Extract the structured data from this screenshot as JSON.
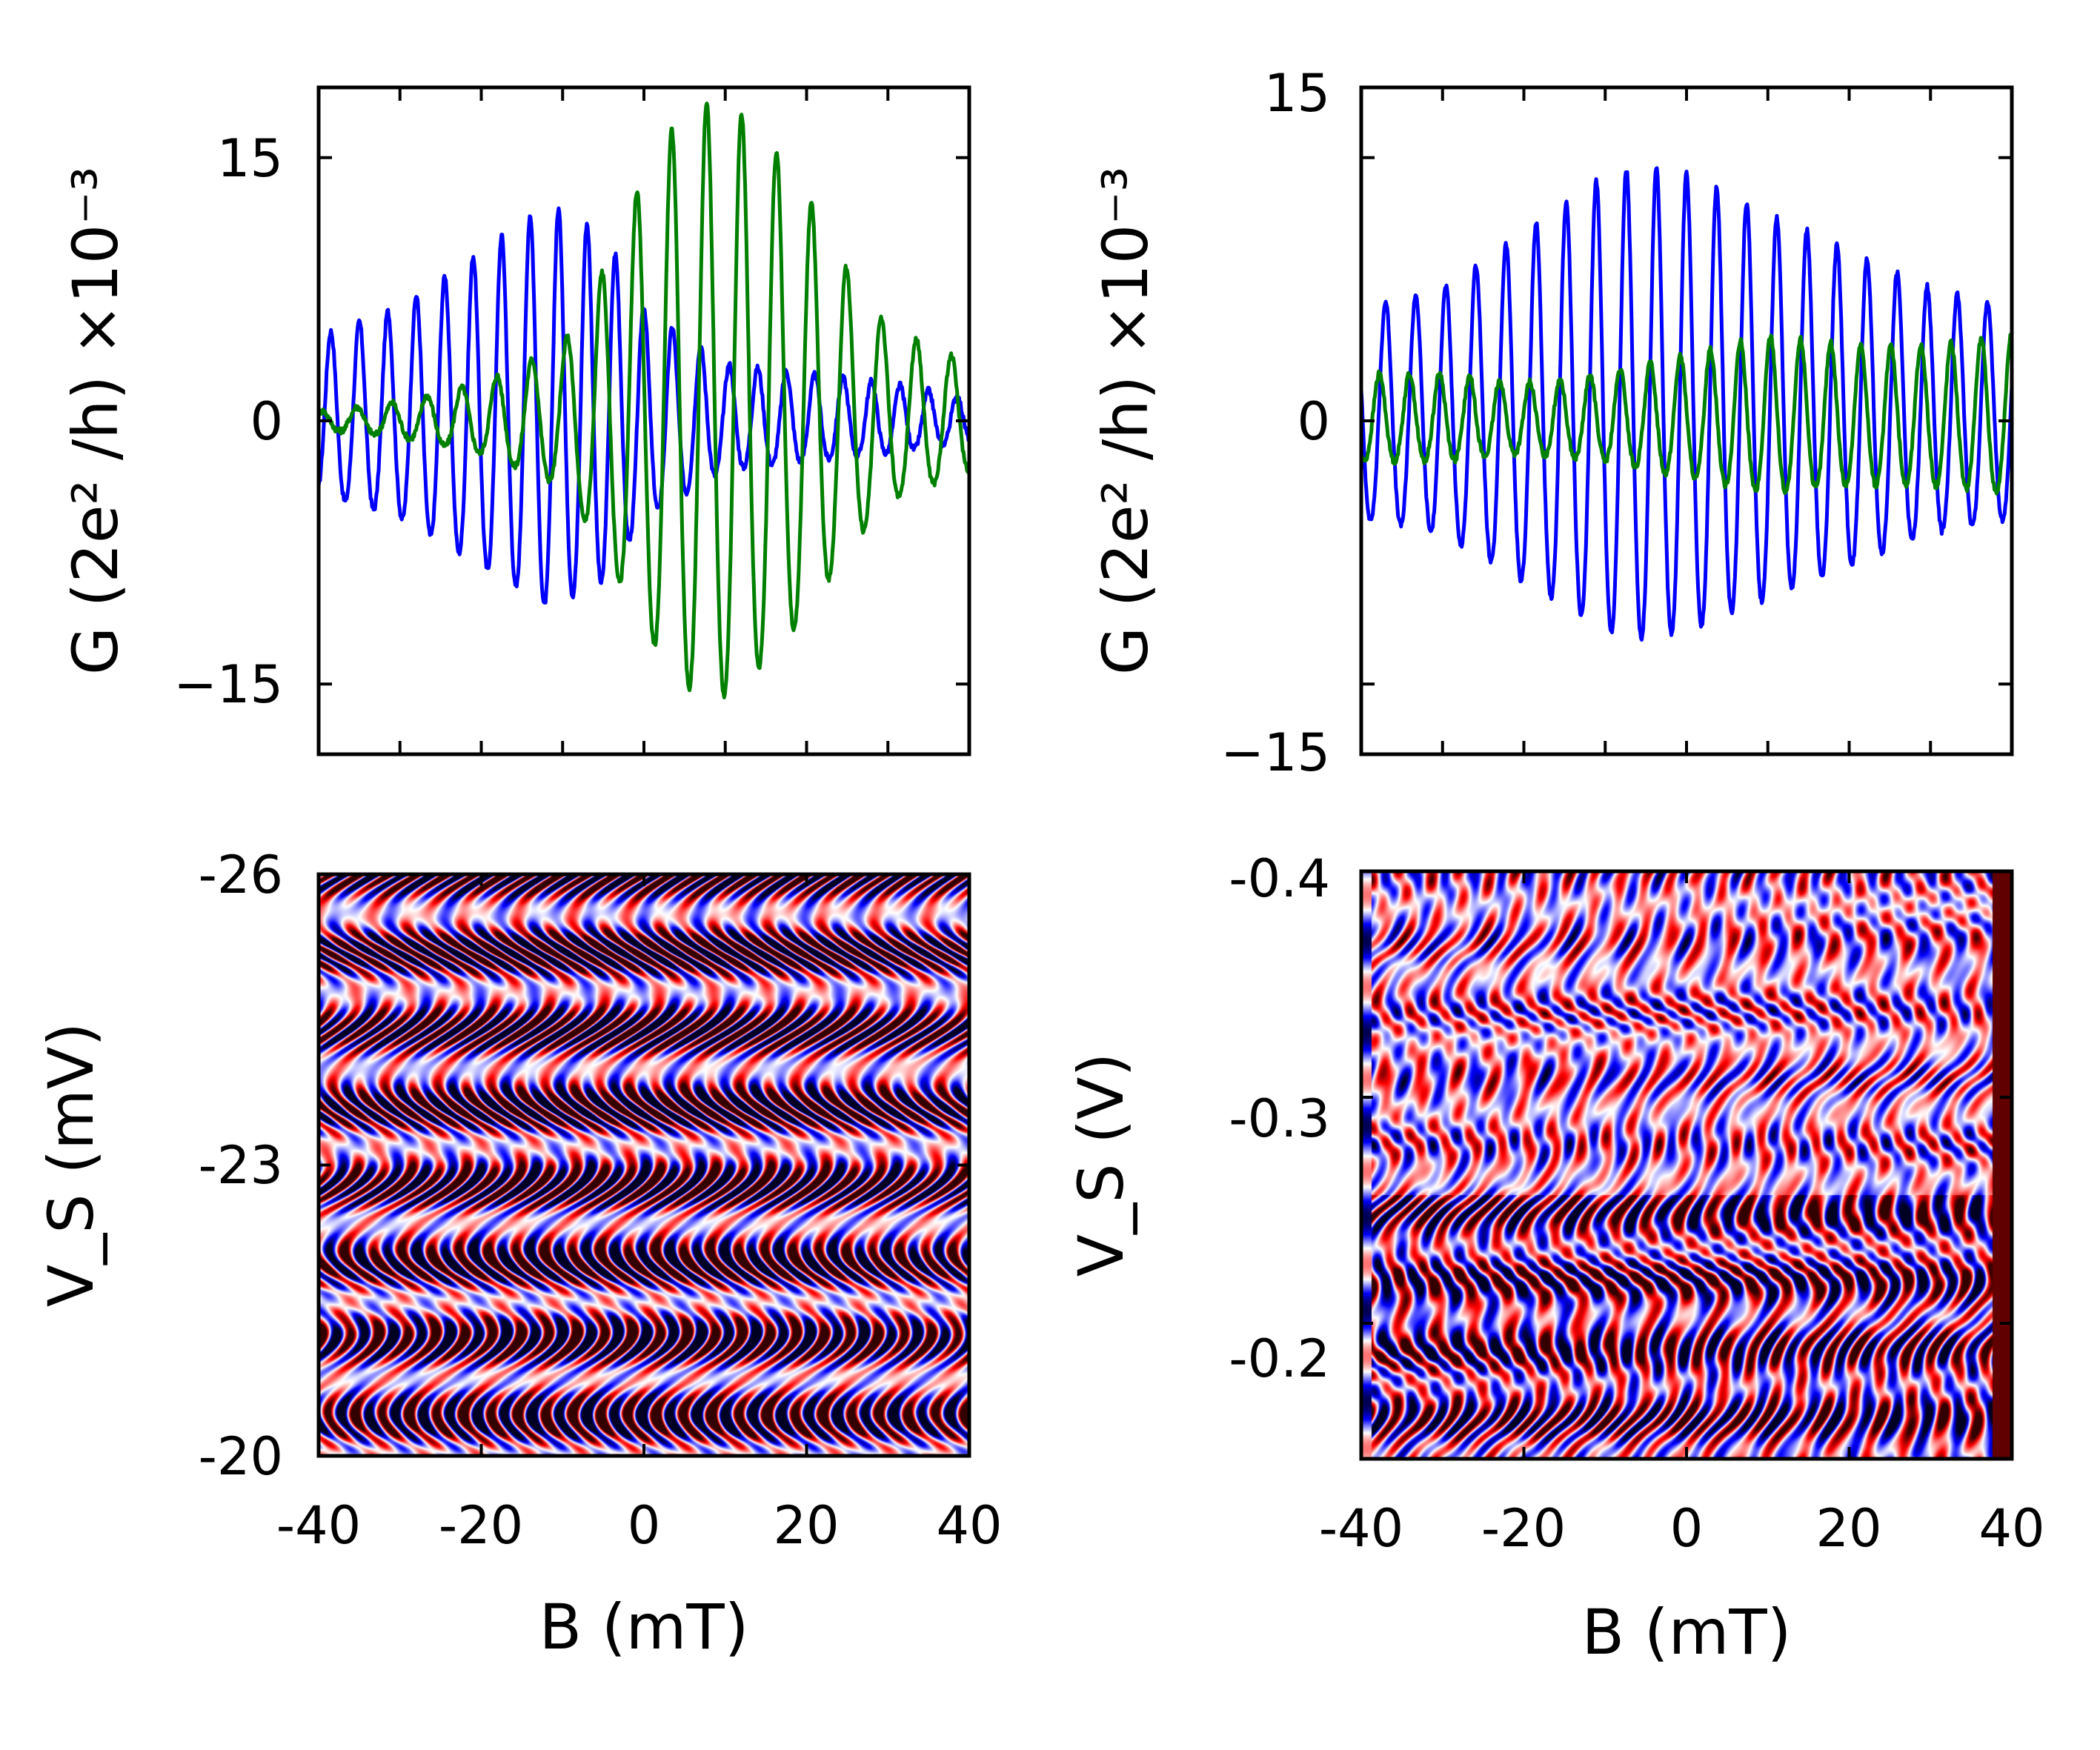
{
  "chart_data": [
    {
      "panel": "top-left",
      "type": "line",
      "xlabel": "",
      "ylabel": "G (2e² /h) ×10⁻³",
      "xlim": [
        -40,
        40
      ],
      "ylim": [
        -19,
        19
      ],
      "yticks": [
        "15",
        "0",
        "−15"
      ],
      "ytick_values": [
        15,
        0,
        -15
      ],
      "xtick_values": [
        -40,
        -30,
        -20,
        -10,
        0,
        10,
        20,
        30,
        40
      ],
      "show_x_tick_labels": false,
      "colors": {
        "series_1": "#0000ff",
        "series_2": "#008000"
      },
      "series": [
        {
          "color": "#0000ff",
          "period": 3.5,
          "envelope": {
            "x": [
              -40,
              -30,
              -20,
              -12,
              -5,
              0,
              10,
              20,
              30,
              40
            ],
            "y": [
              4.5,
              6,
              9,
              11.5,
              10,
              6,
              3,
              2.5,
              2,
              1.2
            ]
          }
        },
        {
          "color": "#008000",
          "period": 4.3,
          "envelope": {
            "x": [
              -40,
              -30,
              -20,
              -10,
              -5,
              0,
              5,
              10,
              15,
              20,
              25,
              30,
              40
            ],
            "y": [
              0.5,
              1,
              2,
              4,
              8,
              13,
              16.5,
              17,
              15,
              12,
              8,
              5,
              3
            ]
          }
        }
      ]
    },
    {
      "panel": "top-right",
      "type": "line",
      "xlabel": "",
      "ylabel": "G (2e² /h) ×10⁻³",
      "xlim": [
        -40,
        40
      ],
      "ylim": [
        -19,
        19
      ],
      "yticks": [
        "15",
        "0",
        "−15"
      ],
      "ytick_values": [
        15,
        0,
        -15
      ],
      "xtick_values": [
        -40,
        -30,
        -20,
        -10,
        0,
        10,
        20,
        30,
        40
      ],
      "show_x_tick_labels": false,
      "colors": {
        "series_1": "#0000ff",
        "series_2": "#008000"
      },
      "series": [
        {
          "color": "#0000ff",
          "period": 3.7,
          "envelope": {
            "x": [
              -40,
              -30,
              -20,
              -10,
              -5,
              0,
              10,
              20,
              30,
              40
            ],
            "y": [
              6,
              7,
              10,
              13,
              13.5,
              13,
              11,
              9,
              7,
              6
            ]
          }
        },
        {
          "color": "#008000",
          "period": 3.7,
          "envelope": {
            "x": [
              -40,
              -30,
              -20,
              -10,
              0,
              10,
              20,
              30,
              40
            ],
            "y": [
              2.5,
              2.5,
              2,
              2.5,
              3.5,
              4.5,
              4,
              4,
              4.5
            ]
          }
        }
      ]
    },
    {
      "panel": "bottom-left",
      "type": "heatmap",
      "xlabel": "B (mT)",
      "ylabel": "V_S (mV)",
      "xlim": [
        -40,
        40
      ],
      "ylim": [
        -20,
        -26
      ],
      "xticks": [
        "-40",
        "-20",
        "0",
        "20",
        "40"
      ],
      "xtick_values": [
        -40,
        -20,
        0,
        20,
        40
      ],
      "yticks": [
        "-26",
        "-23",
        "-20"
      ],
      "ytick_values": [
        -26,
        -23,
        -20
      ],
      "colormap": [
        "#000022",
        "#0000ff",
        "#ffffff",
        "#ff0000",
        "#330000"
      ]
    },
    {
      "panel": "bottom-right",
      "type": "heatmap",
      "xlabel": "B (mT)",
      "ylabel": "V_S (V)",
      "xlim": [
        -40,
        40
      ],
      "ylim": [
        -0.14,
        -0.4
      ],
      "xticks": [
        "-40",
        "-20",
        "0",
        "20",
        "40"
      ],
      "xtick_values": [
        -40,
        -20,
        0,
        20,
        40
      ],
      "yticks": [
        "-0.4",
        "-0.3",
        "-0.2"
      ],
      "ytick_values": [
        -0.4,
        -0.3,
        -0.2
      ],
      "colormap": [
        "#000022",
        "#0000ff",
        "#ffffff",
        "#ff0000",
        "#330000"
      ]
    }
  ]
}
